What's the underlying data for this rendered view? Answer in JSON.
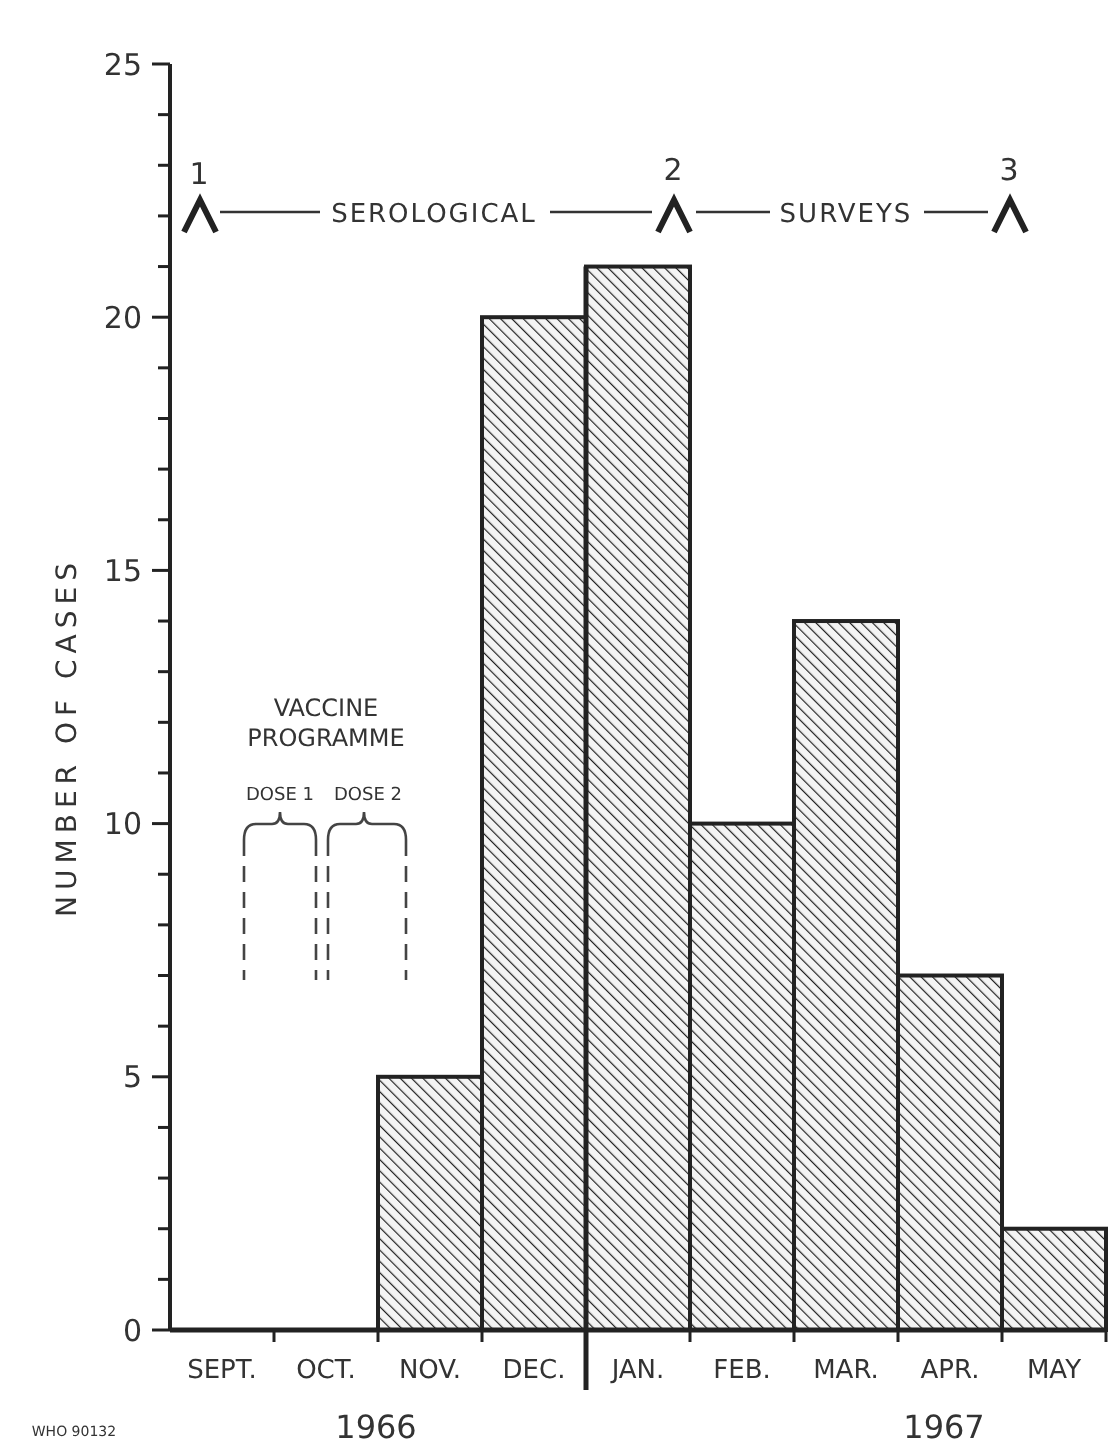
{
  "chart_data": {
    "type": "bar",
    "ylabel": "NUMBER OF CASES",
    "categories": [
      "SEPT.",
      "OCT.",
      "NOV.",
      "DEC.",
      "JAN.",
      "FEB.",
      "MAR.",
      "APR.",
      "MAY"
    ],
    "values": [
      0,
      0,
      5,
      20,
      21,
      10,
      14,
      7,
      2
    ],
    "color": "#222222",
    "ylim": [
      0,
      25
    ],
    "yticks": [
      0,
      {
        "value": 1,
        "label": null
      },
      {
        "value": 2,
        "label": null
      },
      {
        "value": 3,
        "label": null
      },
      {
        "value": 4,
        "label": null
      },
      5,
      {
        "value": 6,
        "label": null
      },
      {
        "value": 7,
        "label": null
      },
      {
        "value": 8,
        "label": null
      },
      {
        "value": 9,
        "label": null
      },
      10,
      {
        "value": 11,
        "label": null
      },
      {
        "value": 12,
        "label": null
      },
      {
        "value": 13,
        "label": null
      },
      {
        "value": 14,
        "label": null
      },
      15,
      {
        "value": 16,
        "label": null
      },
      {
        "value": 17,
        "label": null
      },
      {
        "value": 18,
        "label": null
      },
      {
        "value": 19,
        "label": null
      },
      20,
      {
        "value": 21,
        "label": null
      },
      {
        "value": 22,
        "label": null
      },
      {
        "value": 23,
        "label": null
      },
      {
        "value": 24,
        "label": null
      },
      25
    ],
    "grid": false,
    "annotations": [
      "1",
      "2",
      "3",
      "SEROLOGICAL",
      "SURVEYS",
      "VACCINE PROGRAMME",
      "DOSE 1",
      "DOSE 2",
      "1966",
      "1967",
      "WHO 90132"
    ]
  }
}
